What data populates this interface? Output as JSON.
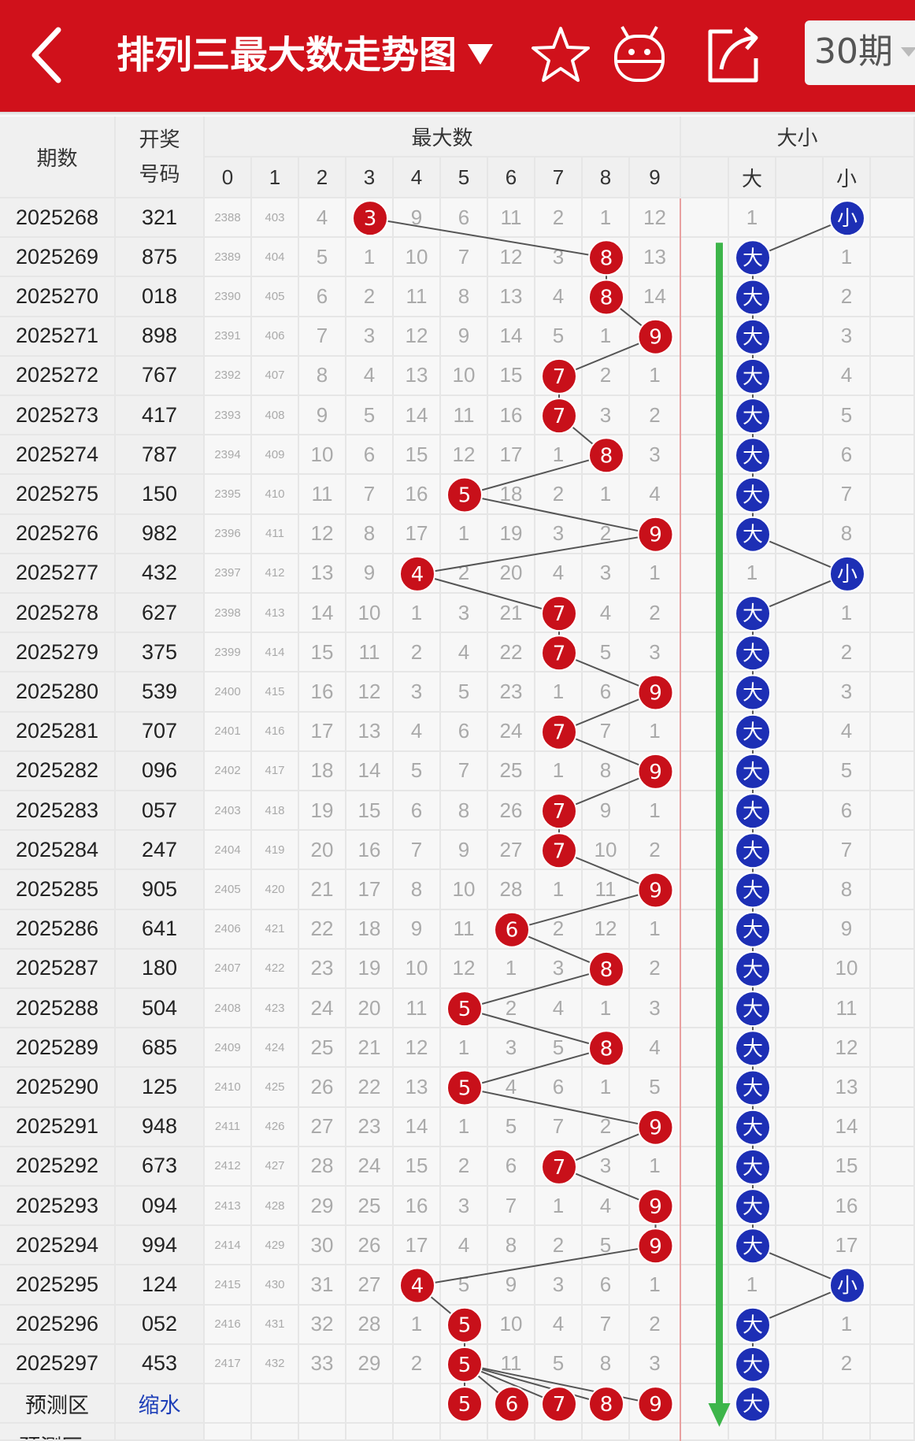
{
  "header": {
    "title": "排列三最大数走势图",
    "period_selector": "30期"
  },
  "columns": {
    "period": "期数",
    "draw_line1": "开奖",
    "draw_line2": "号码",
    "group_max": "最大数",
    "group_size": "大小",
    "digits": [
      "0",
      "1",
      "2",
      "3",
      "4",
      "5",
      "6",
      "7",
      "8",
      "9"
    ],
    "size_labels": [
      "大",
      "小"
    ]
  },
  "rows": [
    {
      "period": "2025268",
      "draw": "321",
      "max": 3,
      "digits": [
        "2388",
        "403",
        "4",
        "3",
        "9",
        "6",
        "11",
        "2",
        "1",
        "12"
      ],
      "big": "1",
      "small": "小"
    },
    {
      "period": "2025269",
      "draw": "875",
      "max": 8,
      "digits": [
        "2389",
        "404",
        "5",
        "1",
        "10",
        "7",
        "12",
        "3",
        "8",
        "13"
      ],
      "big": "大",
      "small": "1"
    },
    {
      "period": "2025270",
      "draw": "018",
      "max": 8,
      "digits": [
        "2390",
        "405",
        "6",
        "2",
        "11",
        "8",
        "13",
        "4",
        "8",
        "14"
      ],
      "big": "大",
      "small": "2"
    },
    {
      "period": "2025271",
      "draw": "898",
      "max": 9,
      "digits": [
        "2391",
        "406",
        "7",
        "3",
        "12",
        "9",
        "14",
        "5",
        "1",
        "9"
      ],
      "big": "大",
      "small": "3"
    },
    {
      "period": "2025272",
      "draw": "767",
      "max": 7,
      "digits": [
        "2392",
        "407",
        "8",
        "4",
        "13",
        "10",
        "15",
        "7",
        "2",
        "1"
      ],
      "big": "大",
      "small": "4"
    },
    {
      "period": "2025273",
      "draw": "417",
      "max": 7,
      "digits": [
        "2393",
        "408",
        "9",
        "5",
        "14",
        "11",
        "16",
        "7",
        "3",
        "2"
      ],
      "big": "大",
      "small": "5"
    },
    {
      "period": "2025274",
      "draw": "787",
      "max": 8,
      "digits": [
        "2394",
        "409",
        "10",
        "6",
        "15",
        "12",
        "17",
        "1",
        "8",
        "3"
      ],
      "big": "大",
      "small": "6"
    },
    {
      "period": "2025275",
      "draw": "150",
      "max": 5,
      "digits": [
        "2395",
        "410",
        "11",
        "7",
        "16",
        "5",
        "18",
        "2",
        "1",
        "4"
      ],
      "big": "大",
      "small": "7"
    },
    {
      "period": "2025276",
      "draw": "982",
      "max": 9,
      "digits": [
        "2396",
        "411",
        "12",
        "8",
        "17",
        "1",
        "19",
        "3",
        "2",
        "9"
      ],
      "big": "大",
      "small": "8"
    },
    {
      "period": "2025277",
      "draw": "432",
      "max": 4,
      "digits": [
        "2397",
        "412",
        "13",
        "9",
        "4",
        "2",
        "20",
        "4",
        "3",
        "1"
      ],
      "big": "1",
      "small": "小"
    },
    {
      "period": "2025278",
      "draw": "627",
      "max": 7,
      "digits": [
        "2398",
        "413",
        "14",
        "10",
        "1",
        "3",
        "21",
        "7",
        "4",
        "2"
      ],
      "big": "大",
      "small": "1"
    },
    {
      "period": "2025279",
      "draw": "375",
      "max": 7,
      "digits": [
        "2399",
        "414",
        "15",
        "11",
        "2",
        "4",
        "22",
        "7",
        "5",
        "3"
      ],
      "big": "大",
      "small": "2"
    },
    {
      "period": "2025280",
      "draw": "539",
      "max": 9,
      "digits": [
        "2400",
        "415",
        "16",
        "12",
        "3",
        "5",
        "23",
        "1",
        "6",
        "9"
      ],
      "big": "大",
      "small": "3"
    },
    {
      "period": "2025281",
      "draw": "707",
      "max": 7,
      "digits": [
        "2401",
        "416",
        "17",
        "13",
        "4",
        "6",
        "24",
        "7",
        "7",
        "1"
      ],
      "big": "大",
      "small": "4"
    },
    {
      "period": "2025282",
      "draw": "096",
      "max": 9,
      "digits": [
        "2402",
        "417",
        "18",
        "14",
        "5",
        "7",
        "25",
        "1",
        "8",
        "9"
      ],
      "big": "大",
      "small": "5"
    },
    {
      "period": "2025283",
      "draw": "057",
      "max": 7,
      "digits": [
        "2403",
        "418",
        "19",
        "15",
        "6",
        "8",
        "26",
        "7",
        "9",
        "1"
      ],
      "big": "大",
      "small": "6"
    },
    {
      "period": "2025284",
      "draw": "247",
      "max": 7,
      "digits": [
        "2404",
        "419",
        "20",
        "16",
        "7",
        "9",
        "27",
        "7",
        "10",
        "2"
      ],
      "big": "大",
      "small": "7"
    },
    {
      "period": "2025285",
      "draw": "905",
      "max": 9,
      "digits": [
        "2405",
        "420",
        "21",
        "17",
        "8",
        "10",
        "28",
        "1",
        "11",
        "9"
      ],
      "big": "大",
      "small": "8"
    },
    {
      "period": "2025286",
      "draw": "641",
      "max": 6,
      "digits": [
        "2406",
        "421",
        "22",
        "18",
        "9",
        "11",
        "6",
        "2",
        "12",
        "1"
      ],
      "big": "大",
      "small": "9"
    },
    {
      "period": "2025287",
      "draw": "180",
      "max": 8,
      "digits": [
        "2407",
        "422",
        "23",
        "19",
        "10",
        "12",
        "1",
        "3",
        "8",
        "2"
      ],
      "big": "大",
      "small": "10"
    },
    {
      "period": "2025288",
      "draw": "504",
      "max": 5,
      "digits": [
        "2408",
        "423",
        "24",
        "20",
        "11",
        "5",
        "2",
        "4",
        "1",
        "3"
      ],
      "big": "大",
      "small": "11"
    },
    {
      "period": "2025289",
      "draw": "685",
      "max": 8,
      "digits": [
        "2409",
        "424",
        "25",
        "21",
        "12",
        "1",
        "3",
        "5",
        "8",
        "4"
      ],
      "big": "大",
      "small": "12"
    },
    {
      "period": "2025290",
      "draw": "125",
      "max": 5,
      "digits": [
        "2410",
        "425",
        "26",
        "22",
        "13",
        "5",
        "4",
        "6",
        "1",
        "5"
      ],
      "big": "大",
      "small": "13"
    },
    {
      "period": "2025291",
      "draw": "948",
      "max": 9,
      "digits": [
        "2411",
        "426",
        "27",
        "23",
        "14",
        "1",
        "5",
        "7",
        "2",
        "9"
      ],
      "big": "大",
      "small": "14"
    },
    {
      "period": "2025292",
      "draw": "673",
      "max": 7,
      "digits": [
        "2412",
        "427",
        "28",
        "24",
        "15",
        "2",
        "6",
        "7",
        "3",
        "1"
      ],
      "big": "大",
      "small": "15"
    },
    {
      "period": "2025293",
      "draw": "094",
      "max": 9,
      "digits": [
        "2413",
        "428",
        "29",
        "25",
        "16",
        "3",
        "7",
        "1",
        "4",
        "9"
      ],
      "big": "大",
      "small": "16"
    },
    {
      "period": "2025294",
      "draw": "994",
      "max": 9,
      "digits": [
        "2414",
        "429",
        "30",
        "26",
        "17",
        "4",
        "8",
        "2",
        "5",
        "9"
      ],
      "big": "大",
      "small": "17"
    },
    {
      "period": "2025295",
      "draw": "124",
      "max": 4,
      "digits": [
        "2415",
        "430",
        "31",
        "27",
        "4",
        "5",
        "9",
        "3",
        "6",
        "1"
      ],
      "big": "1",
      "small": "小"
    },
    {
      "period": "2025296",
      "draw": "052",
      "max": 5,
      "digits": [
        "2416",
        "431",
        "32",
        "28",
        "1",
        "5",
        "10",
        "4",
        "7",
        "2"
      ],
      "big": "大",
      "small": "1"
    },
    {
      "period": "2025297",
      "draw": "453",
      "max": 5,
      "digits": [
        "2417",
        "432",
        "33",
        "29",
        "2",
        "5",
        "11",
        "5",
        "8",
        "3"
      ],
      "big": "大",
      "small": "2"
    }
  ],
  "forecast": {
    "label": "预测区",
    "shrink_label": "缩水",
    "balls": [
      "5",
      "6",
      "7",
      "8",
      "9"
    ],
    "size_ball": "大",
    "label_plus": "预测区+"
  },
  "colors": {
    "header_bg": "#d0111b",
    "red_ball": "#c8101a",
    "blue_ball": "#1d2fb5",
    "trend_arrow": "#3db54a",
    "link_blue": "#1e3fb8"
  }
}
